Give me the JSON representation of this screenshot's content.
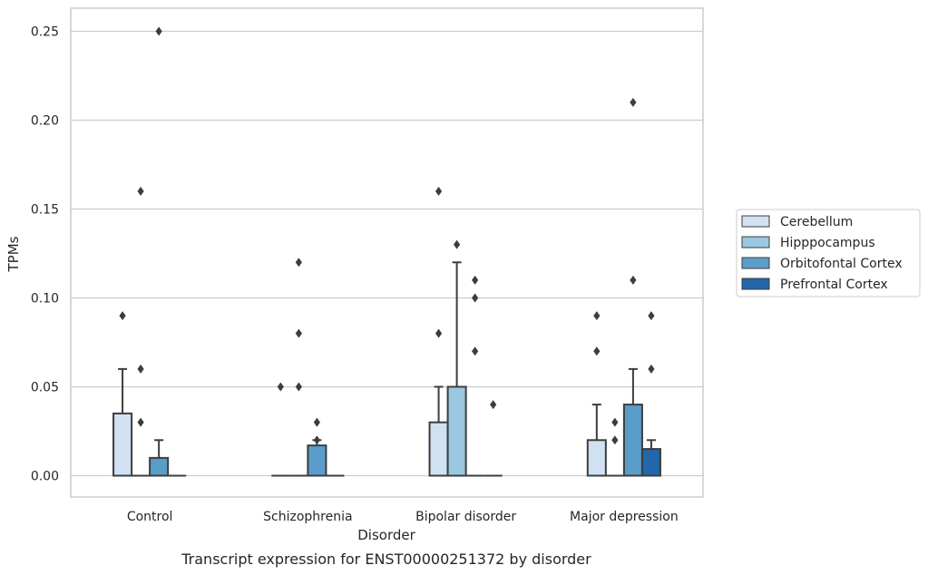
{
  "chart_data": {
    "type": "box",
    "title": "Transcript expression for ENST00000251372 by disorder",
    "xlabel": "Disorder",
    "ylabel": "TPMs",
    "ylim": [
      -0.012,
      0.263
    ],
    "yticks": [
      0.0,
      0.05,
      0.1,
      0.15,
      0.2,
      0.25
    ],
    "ytick_labels": [
      "0.00",
      "0.05",
      "0.10",
      "0.15",
      "0.20",
      "0.25"
    ],
    "grid": "horizontal",
    "legend_position": "right",
    "categories": [
      "Control",
      "Schizophrenia",
      "Bipolar disorder",
      "Major depression"
    ],
    "series": [
      {
        "name": "Cerebellum",
        "color": "#d0e1f2",
        "boxes": [
          {
            "q1": 0.0,
            "median": 0.0,
            "q3": 0.035,
            "whisker_low": 0.0,
            "whisker_high": 0.06,
            "outliers": [
              0.09
            ]
          },
          {
            "q1": 0.0,
            "median": 0.0,
            "q3": 0.0,
            "whisker_low": 0.0,
            "whisker_high": 0.0,
            "outliers": [
              0.05
            ]
          },
          {
            "q1": 0.0,
            "median": 0.0,
            "q3": 0.03,
            "whisker_low": 0.0,
            "whisker_high": 0.05,
            "outliers": [
              0.08,
              0.16
            ]
          },
          {
            "q1": 0.0,
            "median": 0.0,
            "q3": 0.02,
            "whisker_low": 0.0,
            "whisker_high": 0.04,
            "outliers": [
              0.07,
              0.09
            ]
          }
        ]
      },
      {
        "name": "Hipppocampus",
        "color": "#9ac8e0",
        "boxes": [
          {
            "q1": 0.0,
            "median": 0.0,
            "q3": 0.0,
            "whisker_low": 0.0,
            "whisker_high": 0.0,
            "outliers": [
              0.16,
              0.06,
              0.03
            ]
          },
          {
            "q1": 0.0,
            "median": 0.0,
            "q3": 0.0,
            "whisker_low": 0.0,
            "whisker_high": 0.0,
            "outliers": [
              0.12,
              0.08,
              0.05
            ]
          },
          {
            "q1": 0.0,
            "median": 0.0,
            "q3": 0.05,
            "whisker_low": 0.0,
            "whisker_high": 0.12,
            "outliers": [
              0.13
            ]
          },
          {
            "q1": 0.0,
            "median": 0.0,
            "q3": 0.0,
            "whisker_low": 0.0,
            "whisker_high": 0.0,
            "outliers": [
              0.03,
              0.02
            ]
          }
        ]
      },
      {
        "name": "Orbitofontal Cortex",
        "color": "#5a9dcb",
        "boxes": [
          {
            "q1": 0.0,
            "median": 0.0,
            "q3": 0.01,
            "whisker_low": 0.0,
            "whisker_high": 0.02,
            "outliers": [
              0.25
            ]
          },
          {
            "q1": 0.0,
            "median": 0.0,
            "q3": 0.017,
            "whisker_low": 0.0,
            "whisker_high": 0.02,
            "outliers": [
              0.03,
              0.02
            ]
          },
          {
            "q1": 0.0,
            "median": 0.0,
            "q3": 0.0,
            "whisker_low": 0.0,
            "whisker_high": 0.0,
            "outliers": [
              0.11,
              0.1,
              0.07
            ]
          },
          {
            "q1": 0.0,
            "median": 0.0,
            "q3": 0.04,
            "whisker_low": 0.0,
            "whisker_high": 0.06,
            "outliers": [
              0.11,
              0.21
            ]
          }
        ]
      },
      {
        "name": "Prefrontal Cortex",
        "color": "#2266ab",
        "boxes": [
          {
            "q1": 0.0,
            "median": 0.0,
            "q3": 0.0,
            "whisker_low": 0.0,
            "whisker_high": 0.0,
            "outliers": []
          },
          {
            "q1": 0.0,
            "median": 0.0,
            "q3": 0.0,
            "whisker_low": 0.0,
            "whisker_high": 0.0,
            "outliers": []
          },
          {
            "q1": 0.0,
            "median": 0.0,
            "q3": 0.0,
            "whisker_low": 0.0,
            "whisker_high": 0.0,
            "outliers": [
              0.04
            ]
          },
          {
            "q1": 0.0,
            "median": 0.0,
            "q3": 0.015,
            "whisker_low": 0.0,
            "whisker_high": 0.02,
            "outliers": [
              0.09,
              0.06
            ]
          }
        ]
      }
    ]
  }
}
